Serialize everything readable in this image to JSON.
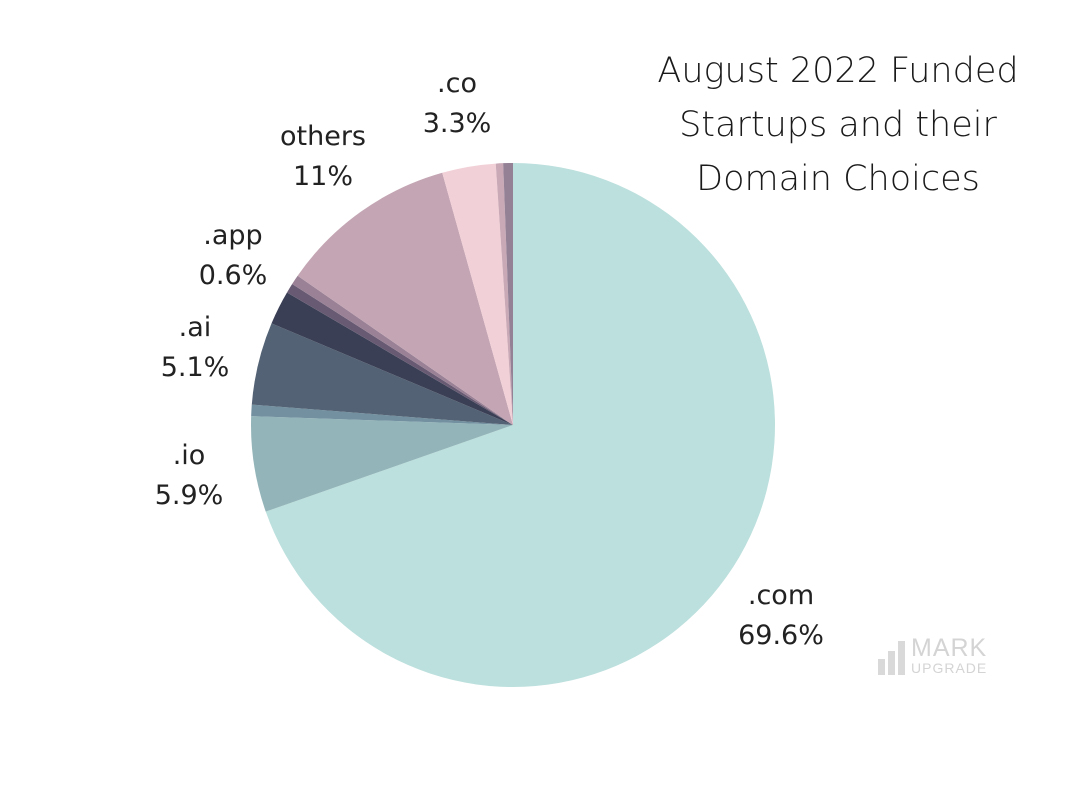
{
  "chart_data": {
    "type": "pie",
    "title": "August 2022 Funded Startups and their Domain Choices",
    "title_lines": [
      "August 2022 Funded",
      "Startups and their",
      "Domain Choices"
    ],
    "start": "top",
    "direction": "clockwise",
    "slices": [
      {
        "label": ".com",
        "value": 69.6,
        "value_label": "69.6%",
        "color": "#bce0dd"
      },
      {
        "label": ".io",
        "value": 5.9,
        "value_label": "5.9%",
        "color": "#93b5b9"
      },
      {
        "label": "",
        "value": 0.7,
        "value_label": "",
        "color": "#7290a0"
      },
      {
        "label": ".ai",
        "value": 5.1,
        "value_label": "5.1%",
        "color": "#536274"
      },
      {
        "label": "",
        "value": 2.1,
        "value_label": "",
        "color": "#3a3f55"
      },
      {
        "label": "",
        "value": 0.6,
        "value_label": "",
        "color": "#675a72"
      },
      {
        "label": ".app",
        "value": 0.6,
        "value_label": "0.6%",
        "color": "#9a8196"
      },
      {
        "label": "others",
        "value": 11,
        "value_label": "11%",
        "color": "#c4a5b3"
      },
      {
        "label": ".co",
        "value": 3.3,
        "value_label": "3.3%",
        "color": "#f2d0d7"
      },
      {
        "label": "",
        "value": 0.45,
        "value_label": "",
        "color": "#c9a9b6"
      },
      {
        "label": "",
        "value": 0.6,
        "value_label": "",
        "color": "#958196"
      }
    ]
  },
  "watermark": {
    "line1": "MARK",
    "line2": "UPGRADE"
  }
}
